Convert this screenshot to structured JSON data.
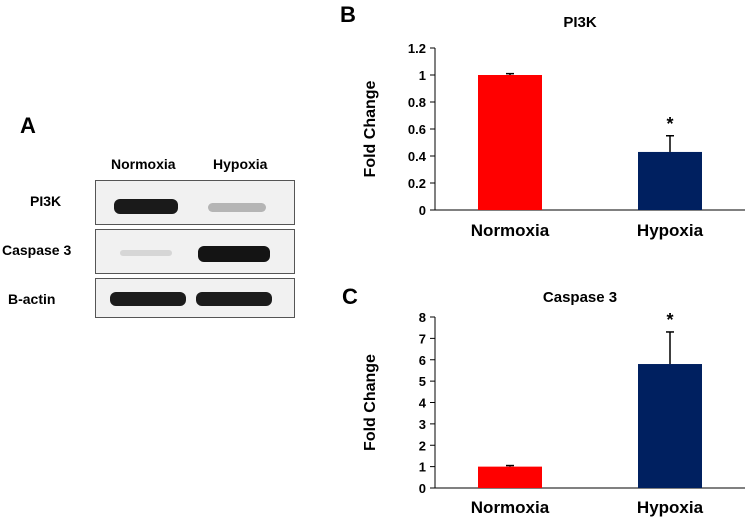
{
  "panel_a": {
    "letter": "A",
    "lanes": [
      "Normoxia",
      "Hypoxia"
    ],
    "rows": [
      {
        "label": "PI3K"
      },
      {
        "label": "Caspase 3"
      },
      {
        "label": "B-actin"
      }
    ]
  },
  "colors": {
    "normoxia_bar": "#ff0000",
    "hypoxia_bar": "#002060"
  },
  "chart_data": [
    {
      "letter": "B",
      "type": "bar",
      "title": "PI3K",
      "ylabel": "Fold Change",
      "xlabel": "",
      "categories": [
        "Normoxia",
        "Hypoxia"
      ],
      "values": [
        1.0,
        0.43
      ],
      "errors": [
        0.01,
        0.12
      ],
      "annotations": [
        "",
        "*"
      ],
      "ylim": [
        0,
        1.2
      ],
      "yticks": [
        "0",
        "0.2",
        "0.4",
        "0.6",
        "0.8",
        "1",
        "1.2"
      ],
      "grid": false
    },
    {
      "letter": "C",
      "type": "bar",
      "title": "Caspase 3",
      "ylabel": "Fold Change",
      "xlabel": "",
      "categories": [
        "Normoxia",
        "Hypoxia"
      ],
      "values": [
        1.0,
        5.8
      ],
      "errors": [
        0.05,
        1.5
      ],
      "annotations": [
        "",
        "*"
      ],
      "ylim": [
        0,
        8
      ],
      "yticks": [
        "0",
        "1",
        "2",
        "3",
        "4",
        "5",
        "6",
        "7",
        "8"
      ],
      "grid": false
    }
  ]
}
